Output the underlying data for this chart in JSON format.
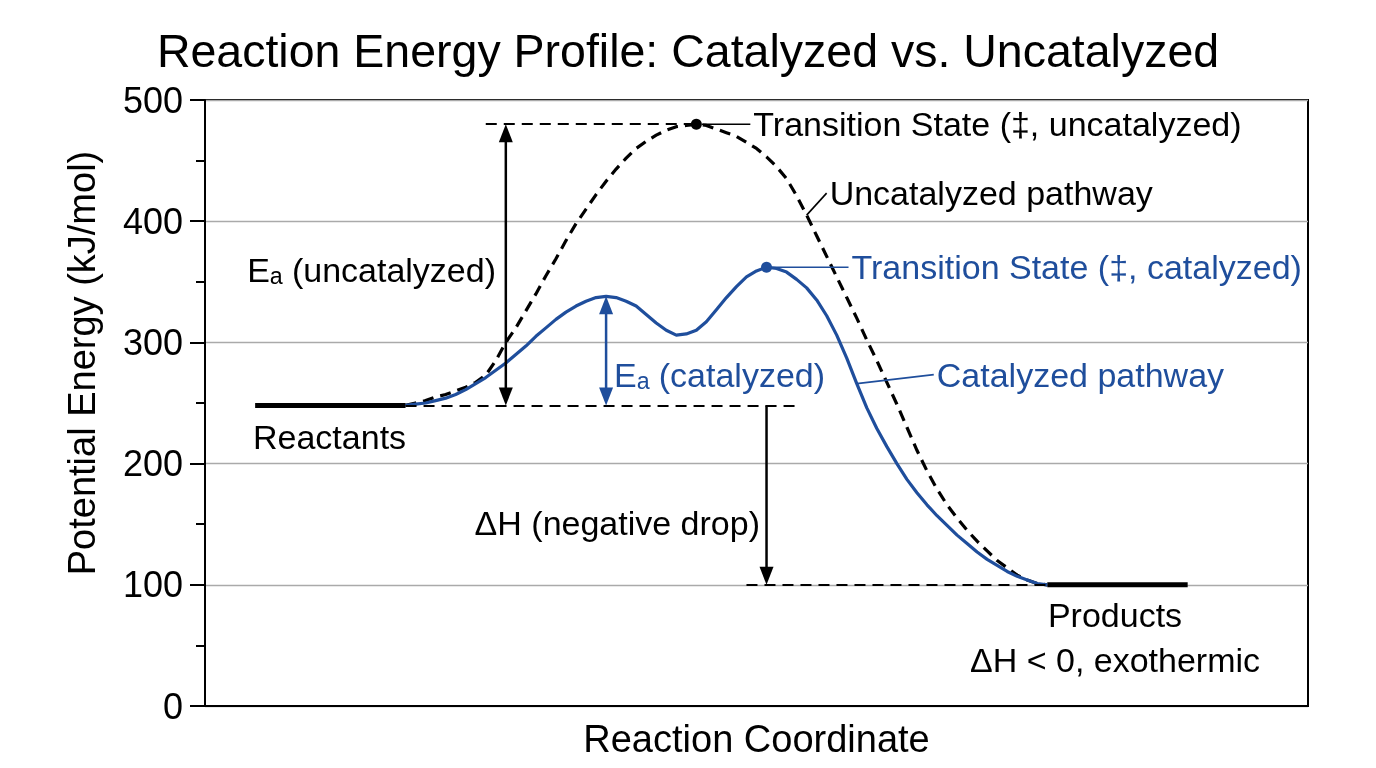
{
  "chart_data": {
    "type": "line",
    "title": "Reaction Energy Profile: Catalyzed vs. Uncatalyzed",
    "xlabel": "Reaction Coordinate",
    "ylabel": "Potential Energy (kJ/mol)",
    "categories": [
      null,
      null,
      null,
      null,
      null,
      null,
      null,
      null,
      null,
      null,
      null,
      null,
      null,
      null,
      null,
      null,
      null,
      null,
      null,
      null,
      null,
      null,
      null,
      null,
      null,
      null,
      null,
      null,
      null,
      null,
      null,
      null,
      null,
      null,
      null,
      null,
      null,
      null,
      null,
      null,
      null,
      null,
      null,
      null,
      null,
      null,
      null,
      null,
      null,
      null,
      null,
      null,
      null,
      null,
      null,
      null,
      null,
      null,
      null,
      null,
      null,
      null,
      null,
      null,
      null,
      null,
      null,
      null,
      null,
      null,
      null,
      null,
      null,
      null,
      null,
      null,
      null,
      null,
      null,
      null,
      null,
      null,
      null,
      null,
      null,
      null,
      null,
      null,
      null,
      null,
      null,
      null,
      null,
      null,
      null,
      null,
      null,
      null,
      null,
      null,
      null,
      null,
      null,
      null,
      null,
      null,
      null,
      null,
      null,
      null,
      null
    ],
    "ylim": [
      0,
      500
    ],
    "yticks": [
      0,
      {
        "value": 50,
        "label": null
      },
      100,
      {
        "value": 150,
        "label": null
      },
      200,
      {
        "value": 250,
        "label": null
      },
      300,
      {
        "value": 350,
        "label": null
      },
      400,
      {
        "value": 450,
        "label": null
      },
      500
    ],
    "grid": "y",
    "series": [
      {
        "color": "#000000",
        "values": [
          null,
          null,
          null,
          null,
          null,
          248,
          248,
          248,
          248,
          248,
          248,
          248,
          248,
          248,
          248,
          248,
          248,
          248,
          248,
          248,
          248,
          null,
          null,
          null,
          null,
          null,
          null,
          null,
          null,
          null,
          null,
          null,
          null,
          null,
          null,
          null,
          null,
          null,
          null,
          null,
          null,
          null,
          null,
          null,
          null,
          null,
          null,
          null,
          null,
          null,
          null,
          null,
          null,
          null,
          null,
          null,
          null,
          null,
          null,
          null,
          null,
          null,
          null,
          null,
          null,
          null,
          null,
          null,
          null,
          null,
          null,
          null,
          null,
          null,
          null,
          null,
          null,
          null,
          null,
          null,
          null,
          null,
          null,
          null,
          null,
          null,
          null,
          null,
          null,
          null,
          null,
          null,
          null,
          null,
          null,
          null,
          null,
          null,
          null,
          null,
          null,
          null,
          null,
          null,
          null,
          null,
          null,
          null,
          null,
          null,
          null
        ]
      },
      {
        "color": "#000000",
        "values": [
          null,
          null,
          null,
          null,
          null,
          null,
          null,
          null,
          null,
          null,
          null,
          null,
          null,
          null,
          null,
          null,
          null,
          null,
          null,
          null,
          null,
          null,
          null,
          null,
          null,
          null,
          null,
          null,
          null,
          null,
          null,
          null,
          null,
          null,
          null,
          null,
          null,
          null,
          null,
          null,
          null,
          null,
          null,
          null,
          null,
          null,
          null,
          null,
          null,
          null,
          null,
          null,
          null,
          null,
          null,
          null,
          null,
          null,
          null,
          null,
          null,
          null,
          null,
          null,
          null,
          null,
          null,
          null,
          null,
          null,
          null,
          null,
          null,
          null,
          null,
          null,
          null,
          null,
          null,
          null,
          null,
          null,
          null,
          null,
          100,
          100,
          100,
          100,
          100,
          100,
          100,
          100,
          100,
          100,
          100,
          100,
          100,
          100,
          100,
          null,
          null,
          null,
          null,
          null,
          null,
          null,
          null,
          null,
          null,
          null,
          null
        ]
      },
      {
        "color": "#000000",
        "line_style": "dashed",
        "values": [
          null,
          null,
          null,
          null,
          null,
          null,
          null,
          null,
          null,
          null,
          null,
          null,
          null,
          null,
          null,
          null,
          null,
          null,
          null,
          null,
          248,
          250,
          252,
          255,
          257,
          260,
          263,
          267,
          273,
          285,
          300,
          312,
          326,
          340,
          355,
          369,
          384,
          398,
          410,
          422,
          433,
          443,
          452,
          460,
          466,
          471,
          475,
          478,
          479,
          480,
          479,
          476,
          473,
          470,
          465,
          460,
          453,
          445,
          435,
          421,
          405,
          388,
          371,
          354,
          337,
          320,
          302,
          285,
          267,
          249,
          230,
          211,
          194,
          179,
          166,
          155,
          145,
          136,
          128,
          120,
          114,
          108,
          104,
          101,
          100,
          null,
          null,
          null,
          null,
          null,
          null,
          null,
          null,
          null,
          null,
          null,
          null,
          null,
          null,
          null,
          null,
          null,
          null,
          null,
          null,
          null,
          null,
          null,
          null,
          null,
          null
        ]
      },
      {
        "color": "#1f4e9c",
        "values": [
          null,
          null,
          null,
          null,
          null,
          null,
          null,
          null,
          null,
          null,
          null,
          null,
          null,
          null,
          null,
          null,
          null,
          null,
          null,
          null,
          248,
          249,
          250,
          252,
          254,
          257,
          261,
          266,
          271,
          277,
          283,
          290,
          297,
          305,
          312,
          319,
          325,
          330,
          334,
          337,
          338,
          337,
          334,
          330,
          323,
          316,
          310,
          306,
          307,
          310,
          317,
          327,
          337,
          346,
          354,
          359,
          362,
          361,
          358,
          352,
          345,
          335,
          322,
          306,
          287,
          266,
          246,
          229,
          214,
          200,
          187,
          176,
          166,
          157,
          149,
          141,
          134,
          127,
          121,
          116,
          111,
          107,
          104,
          101,
          100,
          null,
          null,
          null,
          null,
          null,
          null,
          null,
          null,
          null,
          null,
          null,
          null,
          null,
          null,
          null,
          null,
          null,
          null,
          null,
          null,
          null,
          null,
          null,
          null,
          null,
          null
        ]
      },
      {
        "type": "scatter",
        "color": "#000000",
        "marker": "circle",
        "values": [
          null,
          null,
          null,
          null,
          null,
          null,
          null,
          null,
          null,
          null,
          null,
          null,
          null,
          null,
          null,
          null,
          null,
          null,
          null,
          null,
          null,
          null,
          null,
          null,
          null,
          null,
          null,
          null,
          null,
          null,
          null,
          null,
          null,
          null,
          null,
          null,
          null,
          null,
          null,
          null,
          null,
          null,
          null,
          null,
          null,
          null,
          null,
          null,
          null,
          480,
          null,
          null,
          null,
          null,
          null,
          null,
          null,
          null,
          null,
          null,
          null,
          null,
          null,
          null,
          null,
          null,
          null,
          null,
          null,
          null,
          null,
          null,
          null,
          null,
          null,
          null,
          null,
          null,
          null,
          null,
          null,
          null,
          null,
          null,
          null,
          null,
          null,
          null,
          null,
          null,
          null,
          null,
          null,
          null,
          null,
          null,
          null,
          null,
          null,
          null,
          null,
          null,
          null,
          null,
          null,
          null,
          null,
          null,
          null,
          null,
          null
        ]
      },
      {
        "type": "scatter",
        "color": "#1f4e9c",
        "marker": "circle",
        "values": [
          null,
          null,
          null,
          null,
          null,
          null,
          null,
          null,
          null,
          null,
          null,
          null,
          null,
          null,
          null,
          null,
          null,
          null,
          null,
          null,
          null,
          null,
          null,
          null,
          null,
          null,
          null,
          null,
          null,
          null,
          null,
          null,
          null,
          null,
          null,
          null,
          null,
          null,
          null,
          null,
          null,
          null,
          null,
          null,
          null,
          null,
          null,
          null,
          null,
          null,
          null,
          null,
          null,
          null,
          null,
          null,
          362,
          null,
          null,
          null,
          null,
          null,
          null,
          null,
          null,
          null,
          null,
          null,
          null,
          null,
          null,
          null,
          null,
          null,
          null,
          null,
          null,
          null,
          null,
          null,
          null,
          null,
          null,
          null,
          null,
          null,
          null,
          null,
          null,
          null,
          null,
          null,
          null,
          null,
          null,
          null,
          null,
          null,
          null,
          null,
          null,
          null,
          null,
          null,
          null,
          null,
          null,
          null,
          null,
          null,
          null
        ]
      }
    ],
    "ref_lines": [
      {
        "axis": "y",
        "value": 480,
        "color": "#000000",
        "line_style": "dashed"
      },
      {
        "axis": "y",
        "value": 248,
        "color": "#000000",
        "line_style": "dashed"
      },
      {
        "axis": "y",
        "value": 100,
        "color": "#000000",
        "line_style": "dashed"
      }
    ],
    "annotations": [
      "Reactants",
      "Transition State (‡, uncatalyzed)",
      "Uncatalyzed pathway",
      "Transition State (‡, catalyzed)",
      "Catalyzed pathway",
      "Eₐ (uncatalyzed)",
      "Eₐ (catalyzed)",
      "ΔH (negative drop)",
      "Products",
      "ΔH < 0, exothermic"
    ]
  }
}
